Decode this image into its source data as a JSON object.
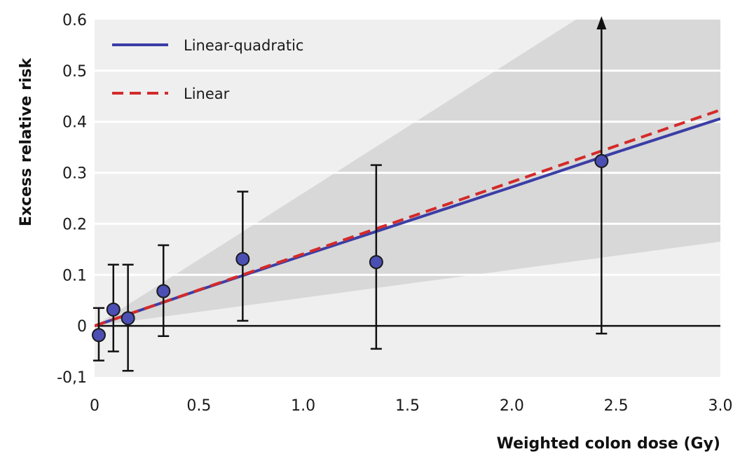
{
  "chart_data": {
    "type": "scatter",
    "xlabel": "Weighted colon dose (Gy)",
    "ylabel": "Excess relative risk",
    "xlim": [
      0,
      3.0
    ],
    "ylim": [
      -0.1,
      0.6
    ],
    "x_ticks": [
      {
        "value": 0,
        "label": "0"
      },
      {
        "value": 0.5,
        "label": "0.5"
      },
      {
        "value": 1.0,
        "label": "1.0"
      },
      {
        "value": 1.5,
        "label": "1.5"
      },
      {
        "value": 2.0,
        "label": "2.0"
      },
      {
        "value": 2.5,
        "label": "2.5"
      },
      {
        "value": 3.0,
        "label": "3.0"
      }
    ],
    "y_ticks": [
      {
        "value": -0.1,
        "label": "-0,1"
      },
      {
        "value": 0,
        "label": "0"
      },
      {
        "value": 0.1,
        "label": "0.1"
      },
      {
        "value": 0.2,
        "label": "0.2"
      },
      {
        "value": 0.3,
        "label": "0.3"
      },
      {
        "value": 0.4,
        "label": "0.4"
      },
      {
        "value": 0.5,
        "label": "0.5"
      },
      {
        "value": 0.6,
        "label": "0.6"
      }
    ],
    "grid": "horizontal",
    "legend_position": "top-left",
    "points": [
      {
        "x": 0.02,
        "y": -0.018,
        "lower": -0.068,
        "upper": 0.035
      },
      {
        "x": 0.09,
        "y": 0.032,
        "lower": -0.05,
        "upper": 0.12
      },
      {
        "x": 0.16,
        "y": 0.015,
        "lower": -0.088,
        "upper": 0.12
      },
      {
        "x": 0.33,
        "y": 0.068,
        "lower": -0.02,
        "upper": 0.158
      },
      {
        "x": 0.71,
        "y": 0.131,
        "lower": 0.01,
        "upper": 0.263
      },
      {
        "x": 1.35,
        "y": 0.125,
        "lower": -0.045,
        "upper": 0.315
      },
      {
        "x": 2.43,
        "y": 0.323,
        "lower": -0.015,
        "upper": 0.6,
        "upper_arrow": true
      }
    ],
    "series": [
      {
        "name": "Linear-quadratic",
        "style": "solid",
        "color": "#3b3ea6",
        "x": [
          0,
          0.5,
          1.0,
          1.5,
          2.0,
          2.5,
          3.0
        ],
        "y": [
          0,
          0.07,
          0.138,
          0.205,
          0.272,
          0.34,
          0.406
        ]
      },
      {
        "name": "Linear",
        "style": "dashed",
        "color": "#d42a2a",
        "x": [
          0,
          0.5,
          1.0,
          1.5,
          2.0,
          2.5,
          3.0
        ],
        "y": [
          0,
          0.0705,
          0.141,
          0.2115,
          0.282,
          0.3525,
          0.423
        ]
      }
    ],
    "confidence_band": {
      "x": [
        0,
        3.0
      ],
      "lower": [
        0,
        0.165
      ],
      "upper": [
        0,
        0.78
      ]
    },
    "colors": {
      "plot_background": "#efefef",
      "band": "#d8d8d8",
      "gridline": "#ffffff",
      "marker_fill": "#4b4fb3",
      "marker_stroke": "#1a1a1a",
      "errorbar": "#111111",
      "zero_line": "#111111"
    }
  }
}
